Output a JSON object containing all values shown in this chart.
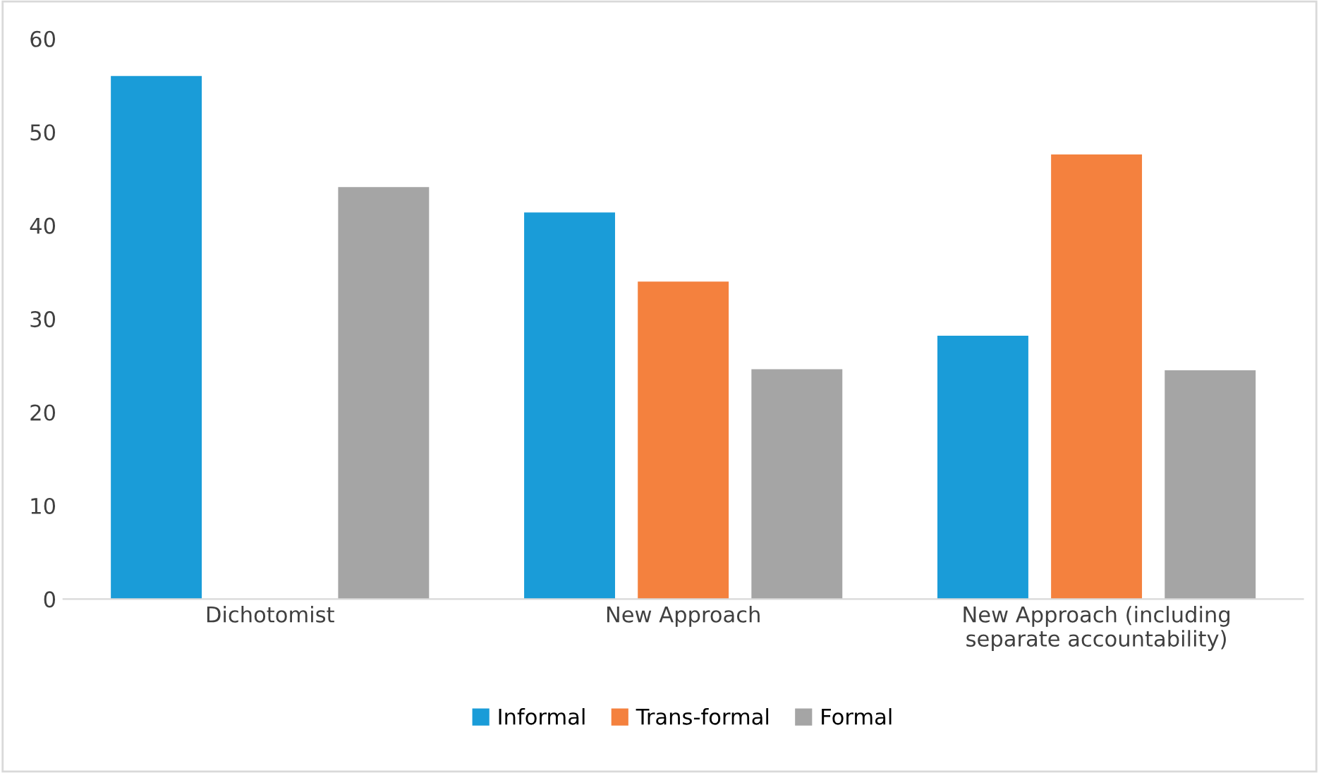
{
  "chart_data": {
    "type": "bar",
    "categories": [
      "Dichotomist",
      "New Approach",
      "New Approach (including separate accountability)"
    ],
    "series": [
      {
        "name": "Informal",
        "color": "#1a9cd8",
        "values": [
          56.0,
          41.4,
          28.2
        ]
      },
      {
        "name": "Trans-formal",
        "color": "#f4813e",
        "values": [
          null,
          34.0,
          47.6
        ]
      },
      {
        "name": "Formal",
        "color": "#a5a5a5",
        "values": [
          44.1,
          24.6,
          24.5
        ]
      }
    ],
    "ylim": [
      0,
      60
    ],
    "yticks": [
      0,
      10,
      20,
      30,
      40,
      50,
      60
    ],
    "grid": false,
    "legend": "bottom"
  }
}
